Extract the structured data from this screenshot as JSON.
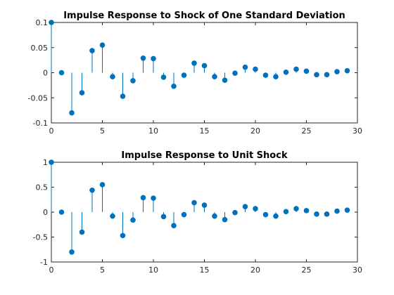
{
  "chart_data": [
    {
      "type": "stem",
      "title": "Impulse Response to Shock of One Standard Deviation",
      "xlim": [
        0,
        30
      ],
      "ylim": [
        -0.1,
        0.1
      ],
      "xticks": [
        0,
        5,
        10,
        15,
        20,
        25,
        30
      ],
      "xtick_labels": [
        "0",
        "5",
        "10",
        "15",
        "20",
        "25",
        "30"
      ],
      "yticks": [
        -0.1,
        -0.05,
        0,
        0.05,
        0.1
      ],
      "ytick_labels": [
        "-0.1",
        "-0.05",
        "0",
        "0.05",
        "0.1"
      ],
      "color": "#0072BD",
      "x": [
        0,
        1,
        2,
        3,
        4,
        5,
        6,
        7,
        8,
        9,
        10,
        11,
        12,
        13,
        14,
        15,
        16,
        17,
        18,
        19,
        20,
        21,
        22,
        23,
        24,
        25,
        26,
        27,
        28,
        29
      ],
      "values": [
        0.1,
        0.0,
        -0.08,
        -0.04,
        0.044,
        0.055,
        -0.008,
        -0.047,
        -0.016,
        0.029,
        0.028,
        -0.009,
        -0.027,
        -0.005,
        0.019,
        0.014,
        -0.008,
        -0.015,
        -0.001,
        0.011,
        0.007,
        -0.005,
        -0.008,
        0.001,
        0.007,
        0.003,
        -0.004,
        -0.004,
        0.002,
        0.004
      ]
    },
    {
      "type": "stem",
      "title": "Impulse Response to Unit Shock",
      "xlim": [
        0,
        30
      ],
      "ylim": [
        -1,
        1
      ],
      "xticks": [
        0,
        5,
        10,
        15,
        20,
        25,
        30
      ],
      "xtick_labels": [
        "0",
        "5",
        "10",
        "15",
        "20",
        "25",
        "30"
      ],
      "yticks": [
        -1,
        -0.5,
        0,
        0.5,
        1
      ],
      "ytick_labels": [
        "-1",
        "-0.5",
        "0",
        "0.5",
        "1"
      ],
      "color": "#0072BD",
      "x": [
        0,
        1,
        2,
        3,
        4,
        5,
        6,
        7,
        8,
        9,
        10,
        11,
        12,
        13,
        14,
        15,
        16,
        17,
        18,
        19,
        20,
        21,
        22,
        23,
        24,
        25,
        26,
        27,
        28,
        29
      ],
      "values": [
        1.0,
        0.0,
        -0.8,
        -0.4,
        0.44,
        0.55,
        -0.08,
        -0.47,
        -0.16,
        0.29,
        0.28,
        -0.09,
        -0.27,
        -0.05,
        0.19,
        0.14,
        -0.08,
        -0.15,
        -0.01,
        0.11,
        0.07,
        -0.05,
        -0.08,
        0.01,
        0.07,
        0.03,
        -0.04,
        -0.04,
        0.02,
        0.04
      ]
    }
  ]
}
